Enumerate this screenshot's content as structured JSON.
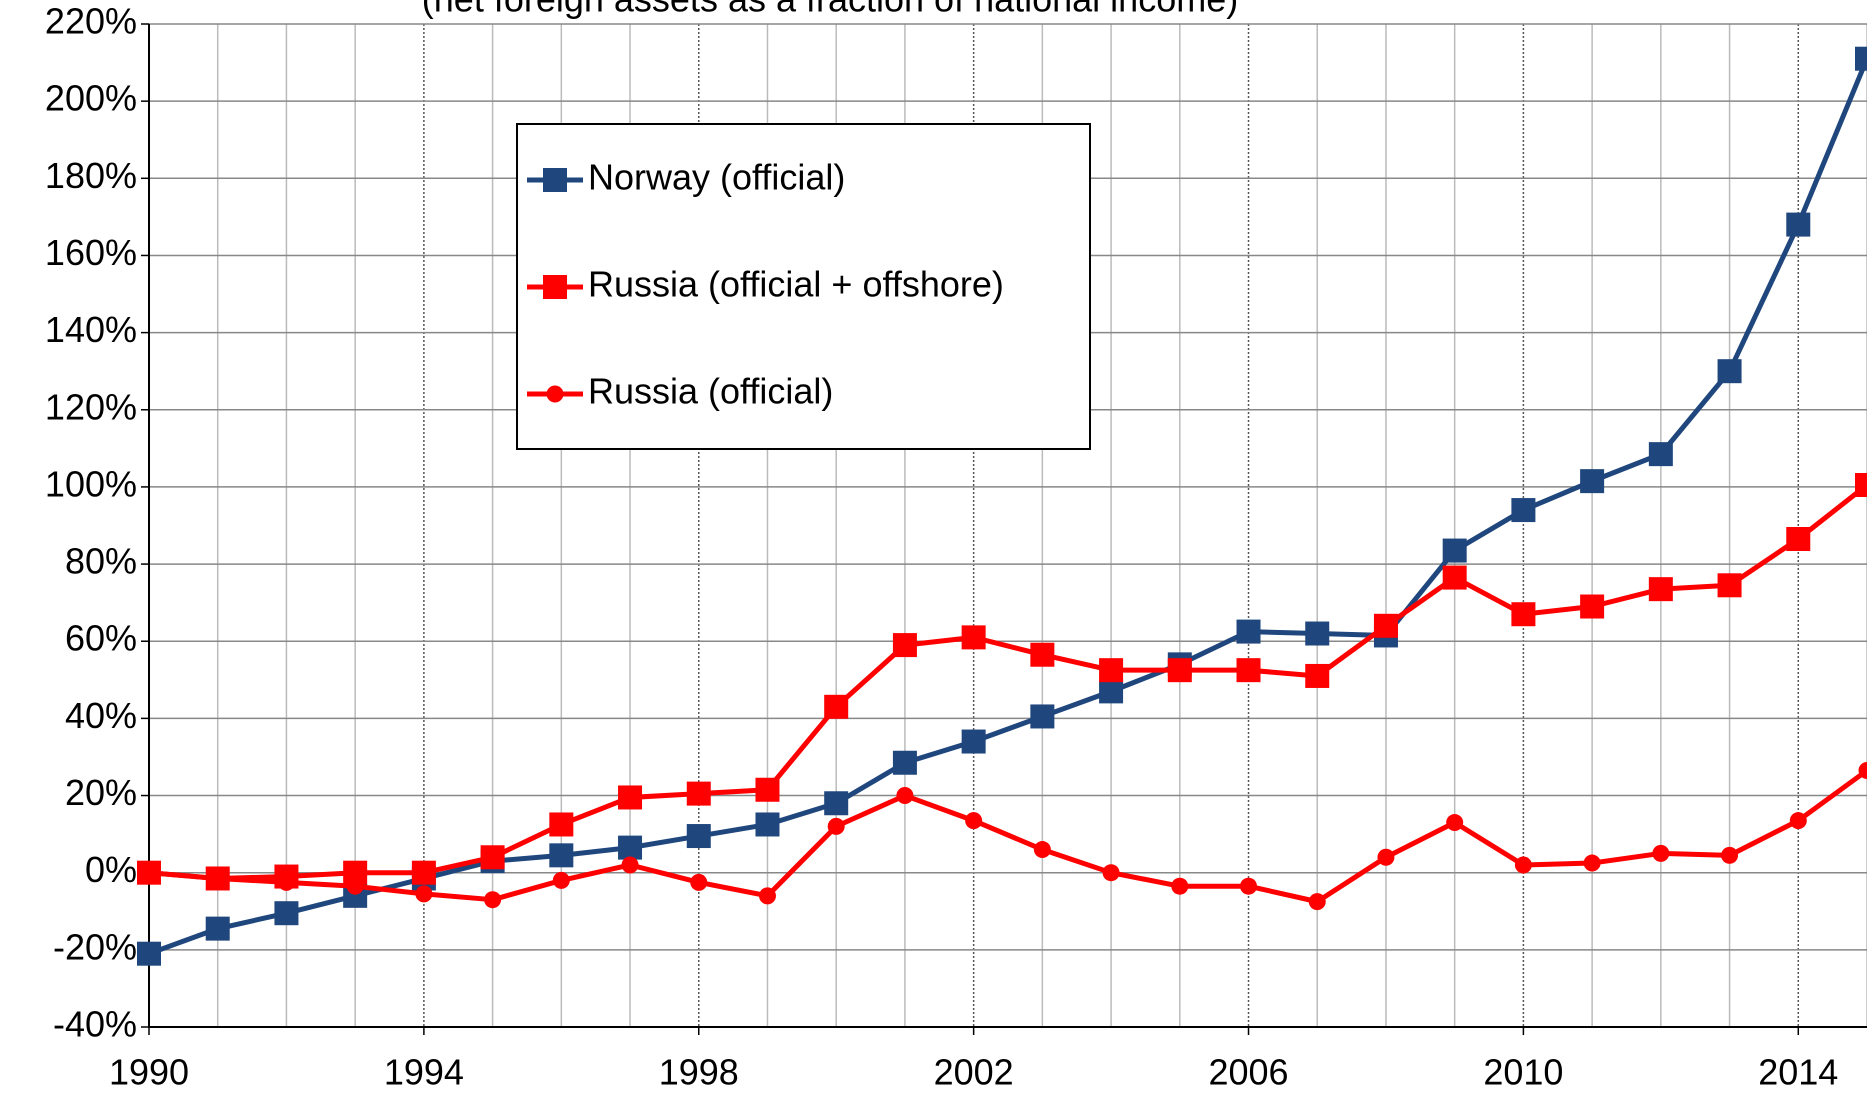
{
  "chart_data": {
    "type": "line",
    "subtitle": "(net foreign assets as a fraction of national income)",
    "x": [
      1990,
      1991,
      1992,
      1993,
      1994,
      1995,
      1996,
      1997,
      1998,
      1999,
      2000,
      2001,
      2002,
      2003,
      2004,
      2005,
      2006,
      2007,
      2008,
      2009,
      2010,
      2011,
      2012,
      2013,
      2014,
      2015
    ],
    "series": [
      {
        "name": "Norway (official)",
        "color": "#1f477d",
        "marker": "square",
        "values": [
          -21,
          -14.5,
          -10.5,
          -6,
          -1.5,
          3,
          4.5,
          6.5,
          9.5,
          12.5,
          18,
          28.5,
          34,
          40.5,
          47,
          54,
          62.5,
          62,
          61.5,
          83.5,
          94,
          101.5,
          108.5,
          130,
          168,
          211
        ]
      },
      {
        "name": "Russia (official + offshore)",
        "color": "#ff0000",
        "marker": "square",
        "values": [
          0,
          -1.5,
          -1,
          0,
          0,
          4,
          12.5,
          19.5,
          20.5,
          21.5,
          43,
          59,
          61,
          56.5,
          52.5,
          52.5,
          52.5,
          51,
          64,
          76.5,
          67,
          69,
          73.5,
          74.5,
          86.5,
          100.5
        ]
      },
      {
        "name": "Russia (official)",
        "color": "#ff0000",
        "marker": "circle",
        "values": [
          0,
          -1.5,
          -2.5,
          -3.5,
          -5.5,
          -7,
          -2,
          2,
          -2.5,
          -6,
          12,
          20,
          13.5,
          6,
          0,
          -3.5,
          -3.5,
          -7.5,
          4,
          13,
          2,
          2.5,
          5,
          4.5,
          13.5,
          26.5
        ]
      }
    ],
    "xlim": [
      1990,
      2015
    ],
    "xticks": [
      1990,
      1994,
      1998,
      2002,
      2006,
      2010,
      2014
    ],
    "xgrid": [
      1990,
      1991,
      1992,
      1993,
      1994,
      1995,
      1996,
      1997,
      1998,
      1999,
      2000,
      2001,
      2002,
      2003,
      2004,
      2005,
      2006,
      2007,
      2008,
      2009,
      2010,
      2011,
      2012,
      2013,
      2014,
      2015
    ],
    "ylim": [
      -40,
      220
    ],
    "yticks": [
      {
        "value": -40,
        "label": "-40%"
      },
      {
        "value": -20,
        "label": "-20%"
      },
      {
        "value": 0,
        "label": "0%"
      },
      {
        "value": 20,
        "label": "20%"
      },
      {
        "value": 40,
        "label": "40%"
      },
      {
        "value": 60,
        "label": "60%"
      },
      {
        "value": 80,
        "label": "80%"
      },
      {
        "value": 100,
        "label": "100%"
      },
      {
        "value": 120,
        "label": "120%"
      },
      {
        "value": 140,
        "label": "140%"
      },
      {
        "value": 160,
        "label": "160%"
      },
      {
        "value": 180,
        "label": "180%"
      },
      {
        "value": 200,
        "label": "200%"
      },
      {
        "value": 220,
        "label": "220%"
      }
    ],
    "grid": true,
    "legend": "upper-center"
  }
}
